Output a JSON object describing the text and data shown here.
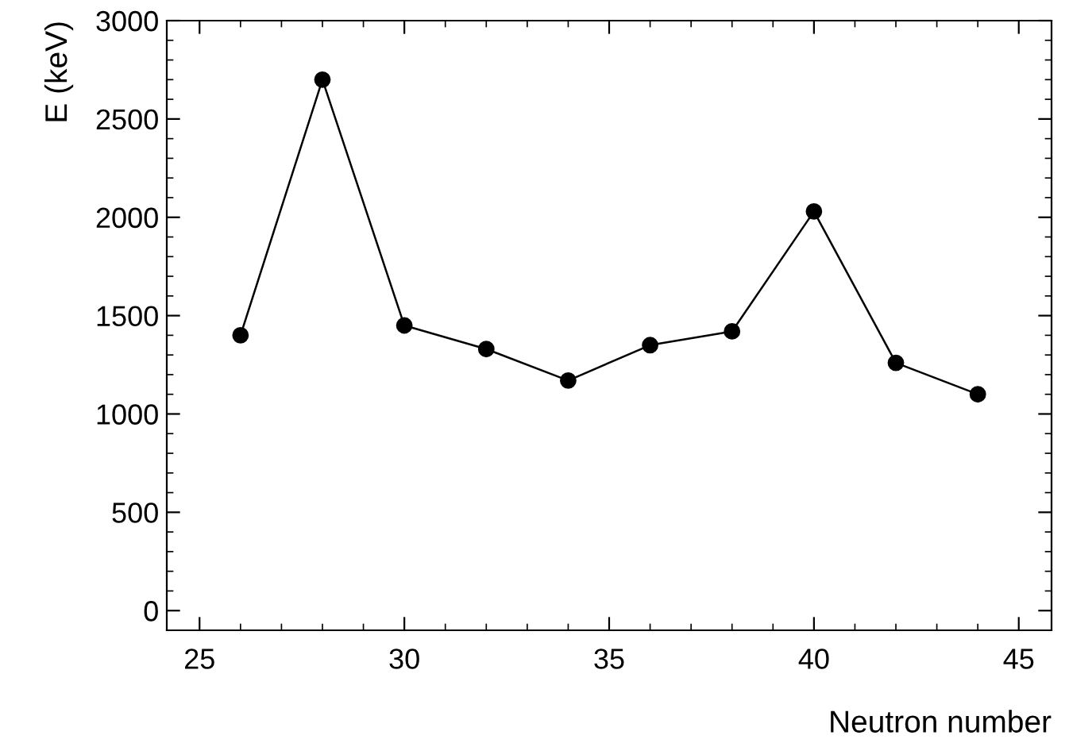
{
  "chart_data": {
    "type": "line",
    "xlabel": "Neutron number",
    "ylabel": "E (keV)",
    "x": [
      26,
      28,
      30,
      32,
      34,
      36,
      38,
      40,
      42,
      44
    ],
    "values": [
      1400,
      2700,
      1450,
      1330,
      1170,
      1350,
      1420,
      2030,
      1260,
      1100
    ],
    "color": "#000000",
    "marker": "circle",
    "line_style": "solid",
    "xlim": [
      24.2,
      45.8
    ],
    "xticks": [
      25,
      30,
      35,
      40,
      45
    ],
    "ylim": [
      -100,
      3000
    ],
    "yticks": [
      0,
      500,
      1000,
      1500,
      2000,
      2500,
      3000
    ],
    "grid": false,
    "legend": false
  }
}
